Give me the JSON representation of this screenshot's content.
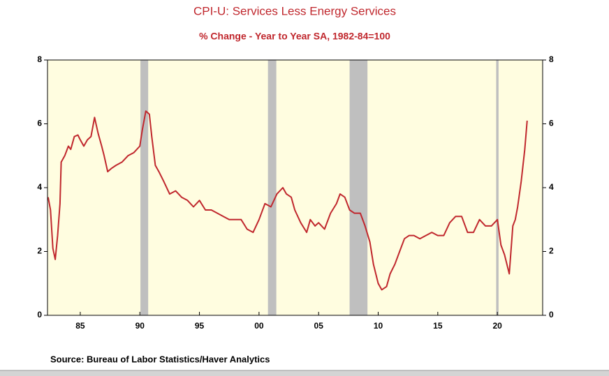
{
  "chart_data": {
    "type": "line",
    "title": "CPI-U: Services Less Energy Services",
    "subtitle": "% Change - Year to Year    SA, 1982-84=100",
    "source": "Source:  Bureau of Labor Statistics/Haver Analytics",
    "background": "#fffde0",
    "recession_color": "#bfbfbf",
    "recessions": [
      [
        1990.05,
        1990.7
      ],
      [
        2000.75,
        2001.45
      ],
      [
        2007.6,
        2009.1
      ],
      [
        2019.9,
        2020.1
      ]
    ],
    "xlim": [
      1982.25,
      2023.8
    ],
    "xticks": [
      {
        "value": 1985,
        "label": "85"
      },
      {
        "value": 1990,
        "label": "90"
      },
      {
        "value": 1995,
        "label": "95"
      },
      {
        "value": 2000,
        "label": "00"
      },
      {
        "value": 2005,
        "label": "05"
      },
      {
        "value": 2010,
        "label": "10"
      },
      {
        "value": 2015,
        "label": "15"
      },
      {
        "value": 2020,
        "label": "20"
      }
    ],
    "ylim": [
      0,
      8
    ],
    "yticks": [
      0,
      2,
      4,
      6,
      8
    ],
    "y2lim": [
      0,
      8
    ],
    "y2ticks": [
      0,
      2,
      4,
      6,
      8
    ],
    "x": [
      1982.3,
      1982.5,
      1982.7,
      1982.9,
      1983.1,
      1983.3,
      1983.4,
      1983.7,
      1984.0,
      1984.2,
      1984.5,
      1984.8,
      1985.0,
      1985.3,
      1985.6,
      1985.9,
      1986.2,
      1986.5,
      1986.8,
      1987.0,
      1987.3,
      1987.6,
      1988.0,
      1988.5,
      1989.0,
      1989.5,
      1990.0,
      1990.2,
      1990.5,
      1990.8,
      1991.0,
      1991.3,
      1991.6,
      1992.0,
      1992.5,
      1993.0,
      1993.5,
      1994.0,
      1994.5,
      1995.0,
      1995.5,
      1996.0,
      1996.5,
      1997.0,
      1997.5,
      1998.0,
      1998.5,
      1999.0,
      1999.5,
      2000.0,
      2000.5,
      2001.0,
      2001.5,
      2002.0,
      2002.3,
      2002.7,
      2003.0,
      2003.5,
      2004.0,
      2004.3,
      2004.7,
      2005.0,
      2005.5,
      2006.0,
      2006.5,
      2006.8,
      2007.2,
      2007.6,
      2008.0,
      2008.5,
      2008.9,
      2009.3,
      2009.6,
      2010.0,
      2010.3,
      2010.7,
      2011.0,
      2011.4,
      2011.8,
      2012.2,
      2012.6,
      2013.0,
      2013.5,
      2014.0,
      2014.5,
      2015.0,
      2015.5,
      2016.0,
      2016.5,
      2017.0,
      2017.5,
      2018.0,
      2018.5,
      2019.0,
      2019.5,
      2020.0,
      2020.3,
      2020.6,
      2021.0,
      2021.3,
      2021.5,
      2021.7,
      2022.0,
      2022.3,
      2022.5
    ],
    "series": [
      {
        "name": "CPI-U Services Less Energy Services",
        "color": "#c0272d",
        "values": [
          3.7,
          3.3,
          2.1,
          1.75,
          2.5,
          3.5,
          4.8,
          5.0,
          5.3,
          5.2,
          5.6,
          5.65,
          5.5,
          5.3,
          5.5,
          5.6,
          6.2,
          5.7,
          5.3,
          5.0,
          4.5,
          4.6,
          4.7,
          4.8,
          5.0,
          5.1,
          5.3,
          5.8,
          6.4,
          6.3,
          5.6,
          4.7,
          4.5,
          4.2,
          3.8,
          3.9,
          3.7,
          3.6,
          3.4,
          3.6,
          3.3,
          3.3,
          3.2,
          3.1,
          3.0,
          3.0,
          3.0,
          2.7,
          2.6,
          3.0,
          3.5,
          3.4,
          3.8,
          4.0,
          3.8,
          3.7,
          3.3,
          2.9,
          2.6,
          3.0,
          2.8,
          2.9,
          2.7,
          3.2,
          3.5,
          3.8,
          3.7,
          3.3,
          3.2,
          3.2,
          2.8,
          2.3,
          1.6,
          1.0,
          0.8,
          0.9,
          1.3,
          1.6,
          2.0,
          2.4,
          2.5,
          2.5,
          2.4,
          2.5,
          2.6,
          2.5,
          2.5,
          2.9,
          3.1,
          3.1,
          2.6,
          2.6,
          3.0,
          2.8,
          2.8,
          3.0,
          2.2,
          1.9,
          1.3,
          2.8,
          3.0,
          3.4,
          4.2,
          5.2,
          6.1
        ]
      }
    ]
  }
}
